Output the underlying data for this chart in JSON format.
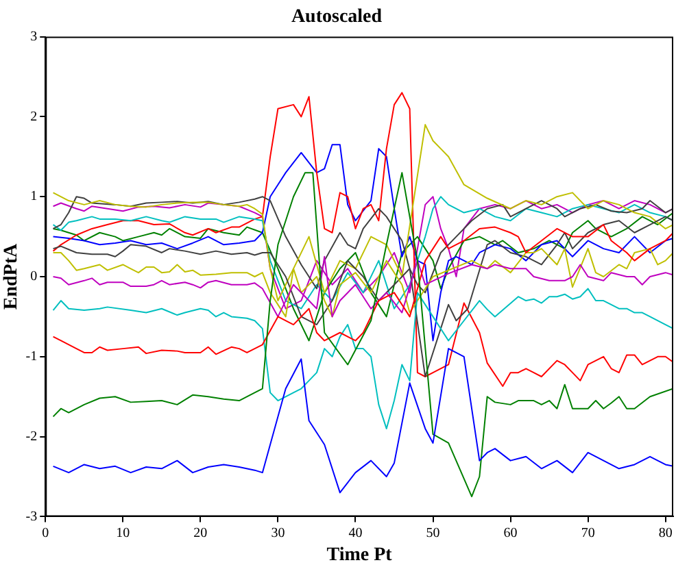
{
  "chart_data": {
    "type": "line",
    "title": "Autoscaled",
    "xlabel": "Time Pt",
    "ylabel": "EndPtA",
    "xlim": [
      0,
      81
    ],
    "xticks": [
      0,
      10,
      20,
      30,
      40,
      50,
      60,
      70,
      80
    ],
    "ylim": [
      -3,
      3
    ],
    "yticks": [
      -3,
      -2,
      -1,
      0,
      1,
      2,
      3
    ],
    "grid": false,
    "legend": false,
    "marker": "none",
    "line_style": "solid",
    "series": [
      {
        "color": "#0000ff",
        "x": [
          1,
          3,
          5,
          7,
          9,
          11,
          13,
          15,
          17,
          19,
          21,
          23,
          25,
          27,
          28,
          29,
          31,
          33,
          34,
          36,
          38,
          40,
          42,
          44,
          45,
          47,
          49,
          50,
          52,
          54,
          56,
          57,
          58,
          60,
          62,
          64,
          66,
          68,
          70,
          72,
          74,
          76,
          78,
          80,
          81
        ],
        "values": [
          -2.37,
          -2.45,
          -2.35,
          -2.4,
          -2.37,
          -2.45,
          -2.38,
          -2.4,
          -2.3,
          -2.45,
          -2.38,
          -2.35,
          -2.38,
          -2.42,
          -2.45,
          -2.1,
          -1.4,
          -1.03,
          -1.8,
          -2.1,
          -2.7,
          -2.45,
          -2.3,
          -2.5,
          -2.33,
          -1.33,
          -1.9,
          -2.08,
          -0.9,
          -1.0,
          -2.3,
          -2.2,
          -2.15,
          -2.3,
          -2.25,
          -2.4,
          -2.3,
          -2.45,
          -2.2,
          -2.3,
          -2.4,
          -2.35,
          -2.25,
          -2.35,
          -2.37
        ]
      },
      {
        "color": "#008000",
        "x": [
          1,
          2,
          3,
          5,
          7,
          9,
          11,
          13,
          15,
          17,
          19,
          21,
          23,
          25,
          27,
          28,
          29,
          30,
          32,
          33.5,
          34.5,
          36,
          39,
          42,
          44,
          46,
          48,
          50,
          52,
          55,
          56,
          57,
          58,
          60,
          61,
          63,
          64,
          65,
          66,
          67,
          68,
          70,
          71,
          72,
          73,
          74,
          75,
          76,
          78,
          81
        ],
        "values": [
          -1.75,
          -1.65,
          -1.7,
          -1.6,
          -1.52,
          -1.5,
          -1.57,
          -1.56,
          -1.55,
          -1.6,
          -1.48,
          -1.5,
          -1.53,
          -1.55,
          -1.45,
          -1.4,
          -0.3,
          0.4,
          1.0,
          1.3,
          1.3,
          -0.7,
          -1.1,
          -0.55,
          0.4,
          1.3,
          0.2,
          -1.97,
          -2.08,
          -2.75,
          -2.5,
          -1.5,
          -1.57,
          -1.6,
          -1.55,
          -1.55,
          -1.6,
          -1.55,
          -1.65,
          -1.35,
          -1.65,
          -1.65,
          -1.55,
          -1.65,
          -1.58,
          -1.5,
          -1.65,
          -1.65,
          -1.5,
          -1.4
        ]
      },
      {
        "color": "#ff0000",
        "x": [
          1,
          2,
          4,
          5,
          6,
          7,
          8,
          10,
          12,
          13,
          15,
          17,
          18,
          20,
          21,
          22,
          24,
          25,
          26,
          28,
          30,
          32,
          34,
          35,
          36,
          38,
          40,
          41,
          43,
          45,
          47,
          49,
          51,
          52,
          54,
          56,
          58,
          60,
          61,
          62,
          64,
          66,
          68,
          70,
          72,
          73,
          75,
          76,
          78,
          80,
          81
        ],
        "values": [
          -0.75,
          -0.8,
          -0.9,
          -0.95,
          -0.95,
          -0.88,
          -0.92,
          -0.9,
          -0.88,
          -0.96,
          -0.92,
          -0.93,
          -0.95,
          -0.95,
          -0.88,
          -0.97,
          -0.88,
          -0.9,
          -0.95,
          -0.85,
          -0.5,
          -0.6,
          -0.4,
          -0.7,
          -0.8,
          -0.7,
          -0.8,
          -0.7,
          -0.3,
          -0.2,
          -0.5,
          0.2,
          0.5,
          0.35,
          0.45,
          0.6,
          0.62,
          0.55,
          0.5,
          0.3,
          0.45,
          0.6,
          0.5,
          0.5,
          0.65,
          0.45,
          0.3,
          0.2,
          0.35,
          0.45,
          0.55
        ]
      },
      {
        "color": "#00bfbf",
        "x": [
          1,
          2,
          3,
          5,
          7,
          8,
          11,
          13,
          15,
          17,
          18,
          20,
          21,
          22,
          23,
          24,
          26,
          27,
          28,
          29,
          30,
          32,
          33,
          34,
          35,
          36,
          37,
          38,
          39,
          40,
          41,
          42,
          43,
          44,
          45,
          46,
          47,
          48,
          50,
          52,
          54,
          56,
          57,
          58,
          61,
          62,
          63,
          64,
          65,
          66,
          67,
          68,
          69,
          70,
          71,
          72,
          73,
          74,
          75,
          76,
          77,
          78,
          80,
          81
        ],
        "values": [
          -0.42,
          -0.3,
          -0.4,
          -0.42,
          -0.4,
          -0.38,
          -0.42,
          -0.45,
          -0.4,
          -0.48,
          -0.45,
          -0.4,
          -0.42,
          -0.5,
          -0.45,
          -0.5,
          -0.52,
          -0.55,
          -0.65,
          -1.45,
          -1.55,
          -1.45,
          -1.4,
          -1.3,
          -1.2,
          -0.9,
          -1.0,
          -0.75,
          -0.6,
          -0.9,
          -0.9,
          -1.0,
          -1.6,
          -1.9,
          -1.55,
          -1.1,
          -1.3,
          -0.2,
          -0.5,
          -0.8,
          -0.55,
          -0.3,
          -0.41,
          -0.5,
          -0.25,
          -0.3,
          -0.28,
          -0.33,
          -0.25,
          -0.25,
          -0.22,
          -0.28,
          -0.25,
          -0.15,
          -0.3,
          -0.3,
          -0.35,
          -0.4,
          -0.4,
          -0.45,
          -0.45,
          -0.5,
          -0.6,
          -0.65
        ]
      },
      {
        "color": "#bf00bf",
        "x": [
          1,
          2,
          3,
          5,
          6,
          7,
          8,
          10,
          11,
          13,
          14,
          15,
          16,
          18,
          19,
          20,
          21,
          22,
          24,
          25,
          26,
          27,
          28,
          30,
          32,
          34,
          35,
          36,
          37,
          38,
          40,
          42,
          44,
          46,
          48,
          49,
          52,
          55,
          57,
          58,
          60,
          62,
          63,
          65,
          67,
          68,
          69,
          70,
          72,
          73,
          75,
          76,
          77,
          78,
          80,
          81
        ],
        "values": [
          0,
          -0.02,
          -0.1,
          -0.05,
          -0.02,
          -0.1,
          -0.07,
          -0.07,
          -0.12,
          -0.12,
          -0.1,
          -0.05,
          -0.1,
          -0.07,
          -0.1,
          -0.14,
          -0.07,
          -0.05,
          -0.1,
          -0.1,
          -0.1,
          -0.08,
          -0.15,
          -0.5,
          -0.1,
          -0.3,
          -0.4,
          0.25,
          -0.5,
          -0.3,
          -0.1,
          -0.4,
          -0.2,
          -0.45,
          0.2,
          -0.1,
          0.04,
          0.15,
          0.1,
          0.15,
          0.1,
          0.1,
          0,
          -0.05,
          -0.05,
          0,
          0.15,
          0,
          -0.05,
          0.05,
          0,
          0,
          -0.1,
          0,
          0.05,
          0.02
        ]
      },
      {
        "color": "#bfbf00",
        "x": [
          1,
          2,
          3,
          4,
          5,
          7,
          8,
          10,
          11,
          12,
          13,
          14,
          15,
          16,
          17,
          18,
          19,
          20,
          22,
          24,
          26,
          27,
          28,
          29,
          31,
          32,
          33,
          35,
          36,
          37,
          38,
          40,
          42,
          44,
          46,
          47,
          50,
          55,
          57,
          58,
          60,
          62,
          63,
          64,
          66,
          67,
          68,
          70,
          71,
          72,
          74,
          75,
          76,
          78,
          79,
          80,
          81
        ],
        "values": [
          0.3,
          0.3,
          0.2,
          0.08,
          0.1,
          0.15,
          0.08,
          0.15,
          0.1,
          0.05,
          0.12,
          0.12,
          0.05,
          0.06,
          0.15,
          0.06,
          0.08,
          0.02,
          0.03,
          0.05,
          0.05,
          0,
          0.05,
          -0.2,
          -0.5,
          0.1,
          -0.2,
          0,
          -0.3,
          -0.5,
          -0.1,
          0.05,
          -0.2,
          0.2,
          -0.1,
          -0.45,
          0.0,
          0.2,
          0.1,
          0.2,
          0.05,
          0.3,
          0.3,
          0.35,
          0.15,
          0.35,
          -0.13,
          0.35,
          0.05,
          0,
          0.15,
          0.1,
          0.3,
          0.35,
          0.15,
          0.2,
          0.3
        ]
      },
      {
        "color": "#404040",
        "x": [
          1,
          2,
          4,
          6,
          8,
          9,
          10,
          11,
          13,
          15,
          16,
          18,
          20,
          22,
          24,
          26,
          27,
          28,
          29,
          31,
          33,
          35,
          37,
          39,
          41,
          43,
          45,
          47,
          49,
          52,
          53,
          54.5,
          57,
          58,
          60,
          62,
          64,
          66,
          67,
          68,
          69,
          70,
          72,
          74,
          76,
          78,
          80,
          81
        ],
        "values": [
          0.35,
          0.38,
          0.3,
          0.28,
          0.28,
          0.25,
          0.32,
          0.4,
          0.38,
          0.3,
          0.35,
          0.32,
          0.28,
          0.32,
          0.28,
          0.3,
          0.27,
          0.3,
          0.3,
          0,
          -0.5,
          -0.6,
          -0.3,
          0.2,
          0,
          -0.3,
          -0.1,
          0.1,
          -1.25,
          -0.35,
          -0.55,
          -0.4,
          0.4,
          0.45,
          0.3,
          0.25,
          0.15,
          0.4,
          0.55,
          0.35,
          0.45,
          0.55,
          0.65,
          0.7,
          0.55,
          0.65,
          0.75,
          0.7
        ]
      },
      {
        "color": "#bfbf00",
        "x": [
          1,
          3,
          5,
          7,
          9,
          11,
          13,
          15,
          17,
          19,
          21,
          23,
          25,
          26,
          27,
          28,
          29,
          30,
          32,
          34,
          36,
          38,
          40,
          42,
          44,
          46,
          49,
          50,
          51,
          52,
          54,
          57,
          60,
          62,
          64,
          66,
          68,
          70,
          72,
          74,
          76,
          78,
          80,
          81
        ],
        "values": [
          1.05,
          0.95,
          0.9,
          0.95,
          0.9,
          0.88,
          0.87,
          0.9,
          0.92,
          0.93,
          0.93,
          0.9,
          0.88,
          0.9,
          0.85,
          0.78,
          0.1,
          -0.3,
          0.1,
          0.5,
          -0.2,
          0.2,
          0.1,
          0.5,
          0.4,
          0,
          1.9,
          1.7,
          1.6,
          1.5,
          1.15,
          0.98,
          0.85,
          0.95,
          0.9,
          1.0,
          1.05,
          0.85,
          0.95,
          0.9,
          0.8,
          0.75,
          0.6,
          0.65
        ]
      },
      {
        "color": "#404040",
        "x": [
          1,
          2,
          3,
          4,
          5,
          6,
          9,
          11,
          13,
          15,
          17,
          19,
          21,
          23,
          25,
          27,
          28,
          29,
          31,
          33,
          34,
          35,
          36,
          38,
          39,
          40,
          41,
          43,
          44,
          46,
          47,
          48,
          49,
          51,
          53,
          55,
          57,
          59,
          60,
          62,
          64,
          66,
          67,
          69,
          71,
          73,
          75,
          77,
          78,
          80,
          81
        ],
        "values": [
          0.6,
          0.65,
          0.8,
          1.0,
          0.98,
          0.92,
          0.9,
          0.88,
          0.92,
          0.93,
          0.94,
          0.92,
          0.94,
          0.9,
          0.93,
          0.97,
          1.0,
          0.95,
          0.5,
          0.15,
          0,
          -0.15,
          0.2,
          0.55,
          0.4,
          0.35,
          0.6,
          0.85,
          0.75,
          0.45,
          0.1,
          -0.1,
          -0.2,
          0.3,
          0.5,
          0.7,
          0.85,
          0.9,
          0.75,
          0.85,
          0.95,
          0.85,
          0.75,
          0.85,
          0.9,
          0.82,
          0.8,
          0.85,
          0.95,
          0.8,
          0.85
        ]
      },
      {
        "color": "#00bfbf",
        "x": [
          1,
          2,
          3,
          4,
          6,
          7,
          9,
          11,
          13,
          15,
          16,
          18,
          20,
          22,
          23,
          25,
          27,
          28,
          29,
          31,
          33,
          35,
          37,
          39,
          41,
          43,
          45,
          47,
          49,
          50,
          51,
          52,
          54,
          56,
          58,
          60,
          62,
          64,
          66,
          68,
          70,
          72,
          74,
          76,
          78,
          80,
          81
        ],
        "values": [
          0.65,
          0.58,
          0.68,
          0.7,
          0.75,
          0.72,
          0.72,
          0.7,
          0.75,
          0.7,
          0.68,
          0.75,
          0.72,
          0.72,
          0.68,
          0.75,
          0.72,
          0.7,
          0.2,
          -0.3,
          -0.4,
          -0.1,
          -0.3,
          0.05,
          -0.2,
          0.2,
          -0.4,
          -0.1,
          0.5,
          0.85,
          1.0,
          0.9,
          0.8,
          0.85,
          0.75,
          0.7,
          0.85,
          0.8,
          0.75,
          0.85,
          0.9,
          0.85,
          0.8,
          0.9,
          0.8,
          0.75,
          0.7
        ]
      },
      {
        "color": "#ff0000",
        "x": [
          1,
          2,
          4,
          6,
          8,
          10,
          12,
          14,
          16,
          18,
          19,
          21,
          22,
          24,
          25,
          27,
          28,
          29,
          30,
          32,
          33,
          34,
          35,
          36,
          37,
          38,
          39,
          40,
          41,
          42,
          43,
          44,
          45,
          46,
          47,
          48,
          49,
          50,
          52,
          54,
          56,
          57,
          59,
          60,
          61,
          62,
          63,
          64,
          66,
          67,
          68,
          69,
          70,
          71,
          72,
          73,
          74,
          75,
          76,
          77,
          79,
          80,
          81
        ],
        "values": [
          0.32,
          0.4,
          0.52,
          0.6,
          0.65,
          0.7,
          0.7,
          0.65,
          0.66,
          0.55,
          0.52,
          0.6,
          0.55,
          0.62,
          0.62,
          0.72,
          0.75,
          1.5,
          2.1,
          2.15,
          2.0,
          2.25,
          1.3,
          0.6,
          0.55,
          1.05,
          1.0,
          0.6,
          0.85,
          0.9,
          0.7,
          1.6,
          2.15,
          2.3,
          2.1,
          -1.2,
          -1.25,
          -1.2,
          -1.1,
          -0.33,
          -0.7,
          -1.08,
          -1.37,
          -1.2,
          -1.2,
          -1.15,
          -1.2,
          -1.25,
          -1.05,
          -1.1,
          -1.2,
          -1.3,
          -1.1,
          -1.05,
          -1.0,
          -1.15,
          -1.2,
          -0.98,
          -0.98,
          -1.1,
          -1.0,
          -1.0,
          -1.07
        ]
      },
      {
        "color": "#0000ff",
        "x": [
          1,
          3,
          5,
          7,
          9,
          11,
          13,
          15,
          17,
          19,
          21,
          23,
          25,
          27,
          28,
          29,
          31,
          33,
          35,
          36,
          37,
          38,
          39,
          40,
          42,
          43,
          44,
          45,
          46,
          47,
          48,
          49,
          50,
          51,
          52,
          53,
          55,
          56,
          58,
          60,
          62,
          64,
          66,
          68,
          70,
          72,
          74,
          76,
          78,
          80,
          81
        ],
        "values": [
          0.5,
          0.48,
          0.45,
          0.4,
          0.42,
          0.45,
          0.4,
          0.42,
          0.35,
          0.42,
          0.5,
          0.4,
          0.42,
          0.45,
          0.55,
          1.0,
          1.3,
          1.55,
          1.3,
          1.35,
          1.65,
          1.65,
          0.9,
          0.7,
          0.95,
          1.6,
          1.5,
          0.85,
          0.25,
          0.5,
          0.2,
          0.15,
          -0.8,
          -0.2,
          0.2,
          0.25,
          0.15,
          0.3,
          0.4,
          0.35,
          0.2,
          0.4,
          0.45,
          0.25,
          0.45,
          0.35,
          0.3,
          0.5,
          0.3,
          0.45,
          0.48
        ]
      },
      {
        "color": "#008000",
        "x": [
          1,
          2,
          4,
          5,
          7,
          9,
          10,
          12,
          14,
          15,
          16,
          18,
          20,
          21,
          23,
          25,
          26,
          28,
          30,
          32,
          34,
          36,
          38,
          40,
          42,
          44,
          46,
          48,
          50,
          51,
          52,
          54,
          56,
          58,
          59,
          61,
          63,
          65,
          67,
          68,
          70,
          71,
          73,
          75,
          77,
          79,
          81
        ],
        "values": [
          0.6,
          0.58,
          0.52,
          0.45,
          0.55,
          0.5,
          0.45,
          0.5,
          0.55,
          0.52,
          0.6,
          0.5,
          0.48,
          0.6,
          0.55,
          0.52,
          0.62,
          0.55,
          0.1,
          -0.4,
          -0.8,
          -0.2,
          0.1,
          0.3,
          -0.2,
          -0.5,
          0.3,
          0.5,
          0.2,
          -0.15,
          0.1,
          0.45,
          0.5,
          0.4,
          0.45,
          0.3,
          0.35,
          0.45,
          0.35,
          0.55,
          0.7,
          0.6,
          0.5,
          0.6,
          0.75,
          0.65,
          0.8
        ]
      },
      {
        "color": "#bf00bf",
        "x": [
          1,
          2,
          4,
          5,
          6,
          8,
          10,
          12,
          14,
          16,
          18,
          20,
          21,
          23,
          25,
          27,
          28,
          29,
          31,
          33,
          35,
          37,
          39,
          41,
          43,
          45,
          47,
          49,
          50,
          51,
          52,
          53,
          54,
          56,
          58,
          60,
          62,
          64,
          66,
          68,
          70,
          72,
          74,
          76,
          78,
          80,
          81
        ],
        "values": [
          0.88,
          0.92,
          0.85,
          0.82,
          0.88,
          0.85,
          0.82,
          0.87,
          0.88,
          0.86,
          0.9,
          0.87,
          0.92,
          0.9,
          0.88,
          0.8,
          0.75,
          0.1,
          -0.4,
          -0.3,
          0.2,
          -0.1,
          0.1,
          -0.2,
          0,
          0.3,
          -0.2,
          0.9,
          1.0,
          0.6,
          0.35,
          0,
          0.6,
          0.85,
          0.9,
          0.85,
          0.95,
          0.85,
          0.9,
          0.8,
          0.9,
          0.95,
          0.85,
          0.95,
          0.9,
          0.8,
          0.85
        ]
      }
    ]
  }
}
